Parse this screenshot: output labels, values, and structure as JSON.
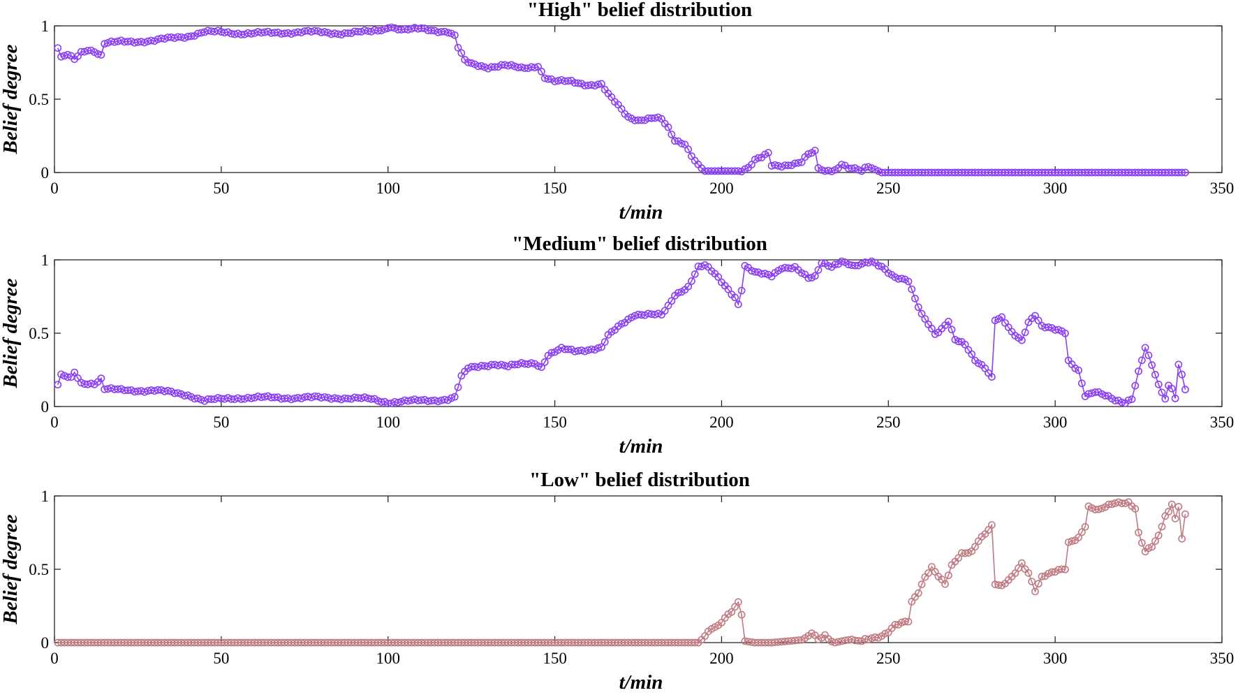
{
  "chart_data": [
    {
      "type": "line",
      "title": "\"High\" belief distribution",
      "xlabel": "t/min",
      "ylabel": "Belief degree",
      "xlim": [
        0,
        350
      ],
      "ylim": [
        0,
        1
      ],
      "xticks": [
        0,
        50,
        100,
        150,
        200,
        250,
        300,
        350
      ],
      "xtick_labels": [
        "0",
        "50",
        "100",
        "150",
        "200",
        "250",
        "300",
        "350"
      ],
      "yticks": [
        0,
        0.5,
        1
      ],
      "ytick_labels": [
        "0",
        "0.5",
        "1"
      ],
      "grid": false,
      "color": "#8a3ff2",
      "marker": "circle",
      "series_name": "High",
      "x_range": [
        1,
        339
      ],
      "anchors": [
        [
          1,
          0.85
        ],
        [
          2,
          0.78
        ],
        [
          4,
          0.8
        ],
        [
          6,
          0.77
        ],
        [
          8,
          0.82
        ],
        [
          10,
          0.84
        ],
        [
          12,
          0.83
        ],
        [
          14,
          0.8
        ],
        [
          15,
          0.88
        ],
        [
          20,
          0.89
        ],
        [
          30,
          0.9
        ],
        [
          40,
          0.93
        ],
        [
          45,
          0.96
        ],
        [
          55,
          0.95
        ],
        [
          65,
          0.95
        ],
        [
          75,
          0.96
        ],
        [
          85,
          0.95
        ],
        [
          95,
          0.96
        ],
        [
          101,
          0.99
        ],
        [
          105,
          0.97
        ],
        [
          110,
          0.98
        ],
        [
          118,
          0.96
        ],
        [
          120,
          0.93
        ],
        [
          121,
          0.85
        ],
        [
          123,
          0.76
        ],
        [
          125,
          0.74
        ],
        [
          130,
          0.72
        ],
        [
          135,
          0.73
        ],
        [
          140,
          0.71
        ],
        [
          143,
          0.72
        ],
        [
          145,
          0.73
        ],
        [
          147,
          0.65
        ],
        [
          150,
          0.62
        ],
        [
          155,
          0.62
        ],
        [
          160,
          0.6
        ],
        [
          164,
          0.6
        ],
        [
          166,
          0.53
        ],
        [
          168,
          0.48
        ],
        [
          170,
          0.43
        ],
        [
          172,
          0.38
        ],
        [
          175,
          0.36
        ],
        [
          180,
          0.37
        ],
        [
          182,
          0.36
        ],
        [
          184,
          0.3
        ],
        [
          186,
          0.22
        ],
        [
          189,
          0.2
        ],
        [
          191,
          0.12
        ],
        [
          193,
          0.05
        ],
        [
          195,
          0.01
        ],
        [
          205,
          0.01
        ],
        [
          208,
          0.03
        ],
        [
          210,
          0.08
        ],
        [
          212,
          0.1
        ],
        [
          214,
          0.13
        ],
        [
          215,
          0.05
        ],
        [
          218,
          0.05
        ],
        [
          222,
          0.06
        ],
        [
          224,
          0.07
        ],
        [
          226,
          0.12
        ],
        [
          228,
          0.14
        ],
        [
          229,
          0.03
        ],
        [
          231,
          0.01
        ],
        [
          234,
          0.02
        ],
        [
          236,
          0.06
        ],
        [
          238,
          0.03
        ],
        [
          242,
          0.01
        ],
        [
          244,
          0.04
        ],
        [
          246,
          0.02
        ],
        [
          248,
          0.0
        ],
        [
          339,
          0.0
        ]
      ],
      "jitter": 0.012
    },
    {
      "type": "line",
      "title": "\"Medium\" belief distribution",
      "xlabel": "t/min",
      "ylabel": "Belief degree",
      "xlim": [
        0,
        350
      ],
      "ylim": [
        0,
        1
      ],
      "xticks": [
        0,
        50,
        100,
        150,
        200,
        250,
        300,
        350
      ],
      "xtick_labels": [
        "0",
        "50",
        "100",
        "150",
        "200",
        "250",
        "300",
        "350"
      ],
      "yticks": [
        0,
        0.5,
        1
      ],
      "ytick_labels": [
        "0",
        "0.5",
        "1"
      ],
      "grid": false,
      "color": "#8a3ff2",
      "marker": "circle",
      "series_name": "Medium",
      "x_range": [
        1,
        339
      ],
      "anchors": [
        [
          1,
          0.15
        ],
        [
          2,
          0.21
        ],
        [
          5,
          0.19
        ],
        [
          6,
          0.23
        ],
        [
          8,
          0.16
        ],
        [
          12,
          0.16
        ],
        [
          14,
          0.19
        ],
        [
          15,
          0.12
        ],
        [
          20,
          0.11
        ],
        [
          30,
          0.11
        ],
        [
          40,
          0.08
        ],
        [
          45,
          0.04
        ],
        [
          55,
          0.06
        ],
        [
          65,
          0.06
        ],
        [
          75,
          0.06
        ],
        [
          85,
          0.06
        ],
        [
          95,
          0.05
        ],
        [
          100,
          0.03
        ],
        [
          110,
          0.04
        ],
        [
          118,
          0.05
        ],
        [
          120,
          0.06
        ],
        [
          122,
          0.2
        ],
        [
          124,
          0.26
        ],
        [
          128,
          0.28
        ],
        [
          132,
          0.29
        ],
        [
          136,
          0.27
        ],
        [
          140,
          0.29
        ],
        [
          144,
          0.3
        ],
        [
          146,
          0.27
        ],
        [
          148,
          0.35
        ],
        [
          152,
          0.39
        ],
        [
          156,
          0.38
        ],
        [
          160,
          0.39
        ],
        [
          164,
          0.4
        ],
        [
          166,
          0.48
        ],
        [
          170,
          0.56
        ],
        [
          174,
          0.63
        ],
        [
          178,
          0.63
        ],
        [
          182,
          0.62
        ],
        [
          184,
          0.68
        ],
        [
          186,
          0.76
        ],
        [
          190,
          0.82
        ],
        [
          193,
          0.95
        ],
        [
          195,
          0.96
        ],
        [
          198,
          0.9
        ],
        [
          200,
          0.85
        ],
        [
          202,
          0.8
        ],
        [
          204,
          0.75
        ],
        [
          205,
          0.7
        ],
        [
          206,
          0.8
        ],
        [
          207,
          0.96
        ],
        [
          210,
          0.91
        ],
        [
          215,
          0.89
        ],
        [
          218,
          0.95
        ],
        [
          222,
          0.95
        ],
        [
          226,
          0.87
        ],
        [
          228,
          0.88
        ],
        [
          230,
          0.98
        ],
        [
          233,
          0.96
        ],
        [
          236,
          0.99
        ],
        [
          240,
          0.95
        ],
        [
          245,
          0.99
        ],
        [
          248,
          0.96
        ],
        [
          250,
          0.92
        ],
        [
          252,
          0.88
        ],
        [
          256,
          0.85
        ],
        [
          258,
          0.73
        ],
        [
          260,
          0.63
        ],
        [
          262,
          0.57
        ],
        [
          264,
          0.5
        ],
        [
          266,
          0.53
        ],
        [
          268,
          0.58
        ],
        [
          270,
          0.45
        ],
        [
          273,
          0.42
        ],
        [
          276,
          0.32
        ],
        [
          279,
          0.27
        ],
        [
          281,
          0.2
        ],
        [
          282,
          0.59
        ],
        [
          284,
          0.6
        ],
        [
          287,
          0.5
        ],
        [
          290,
          0.45
        ],
        [
          292,
          0.58
        ],
        [
          294,
          0.63
        ],
        [
          296,
          0.55
        ],
        [
          300,
          0.52
        ],
        [
          303,
          0.5
        ],
        [
          304,
          0.31
        ],
        [
          307,
          0.25
        ],
        [
          309,
          0.08
        ],
        [
          312,
          0.1
        ],
        [
          316,
          0.06
        ],
        [
          318,
          0.04
        ],
        [
          321,
          0.03
        ],
        [
          323,
          0.06
        ],
        [
          325,
          0.24
        ],
        [
          327,
          0.4
        ],
        [
          329,
          0.28
        ],
        [
          331,
          0.14
        ],
        [
          333,
          0.05
        ],
        [
          334,
          0.14
        ],
        [
          335,
          0.13
        ],
        [
          336,
          0.06
        ],
        [
          337,
          0.29
        ],
        [
          338,
          0.23
        ],
        [
          339,
          0.12
        ]
      ],
      "jitter": 0.012
    },
    {
      "type": "line",
      "title": "\"Low\" belief distribution",
      "xlabel": "t/min",
      "ylabel": "Belief degree",
      "xlim": [
        0,
        350
      ],
      "ylim": [
        0,
        1
      ],
      "xticks": [
        0,
        50,
        100,
        150,
        200,
        250,
        300,
        350
      ],
      "xtick_labels": [
        "0",
        "50",
        "100",
        "150",
        "200",
        "250",
        "300",
        "350"
      ],
      "yticks": [
        0,
        0.5,
        1
      ],
      "ytick_labels": [
        "0",
        "0.5",
        "1"
      ],
      "grid": false,
      "color": "#c07a82",
      "marker": "circle",
      "series_name": "Low",
      "x_range": [
        1,
        339
      ],
      "anchors": [
        [
          1,
          0.0
        ],
        [
          193,
          0.0
        ],
        [
          195,
          0.04
        ],
        [
          197,
          0.09
        ],
        [
          199,
          0.11
        ],
        [
          201,
          0.17
        ],
        [
          203,
          0.22
        ],
        [
          205,
          0.28
        ],
        [
          206,
          0.2
        ],
        [
          207,
          0.01
        ],
        [
          210,
          0.0
        ],
        [
          215,
          0.0
        ],
        [
          220,
          0.01
        ],
        [
          225,
          0.02
        ],
        [
          227,
          0.06
        ],
        [
          229,
          0.02
        ],
        [
          231,
          0.05
        ],
        [
          234,
          0.0
        ],
        [
          238,
          0.02
        ],
        [
          242,
          0.01
        ],
        [
          245,
          0.03
        ],
        [
          248,
          0.05
        ],
        [
          250,
          0.08
        ],
        [
          252,
          0.12
        ],
        [
          256,
          0.14
        ],
        [
          257,
          0.27
        ],
        [
          259,
          0.34
        ],
        [
          261,
          0.45
        ],
        [
          263,
          0.52
        ],
        [
          265,
          0.46
        ],
        [
          267,
          0.4
        ],
        [
          269,
          0.52
        ],
        [
          272,
          0.6
        ],
        [
          275,
          0.62
        ],
        [
          277,
          0.7
        ],
        [
          279,
          0.75
        ],
        [
          281,
          0.8
        ],
        [
          282,
          0.4
        ],
        [
          284,
          0.38
        ],
        [
          287,
          0.44
        ],
        [
          290,
          0.54
        ],
        [
          292,
          0.48
        ],
        [
          294,
          0.36
        ],
        [
          296,
          0.45
        ],
        [
          300,
          0.48
        ],
        [
          303,
          0.5
        ],
        [
          304,
          0.68
        ],
        [
          307,
          0.72
        ],
        [
          309,
          0.8
        ],
        [
          310,
          0.93
        ],
        [
          313,
          0.9
        ],
        [
          318,
          0.95
        ],
        [
          322,
          0.96
        ],
        [
          324,
          0.92
        ],
        [
          325,
          0.75
        ],
        [
          327,
          0.62
        ],
        [
          329,
          0.65
        ],
        [
          331,
          0.72
        ],
        [
          333,
          0.86
        ],
        [
          334,
          0.89
        ],
        [
          335,
          0.95
        ],
        [
          336,
          0.85
        ],
        [
          337,
          0.93
        ],
        [
          338,
          0.72
        ],
        [
          339,
          0.88
        ]
      ],
      "jitter": 0.012
    }
  ]
}
